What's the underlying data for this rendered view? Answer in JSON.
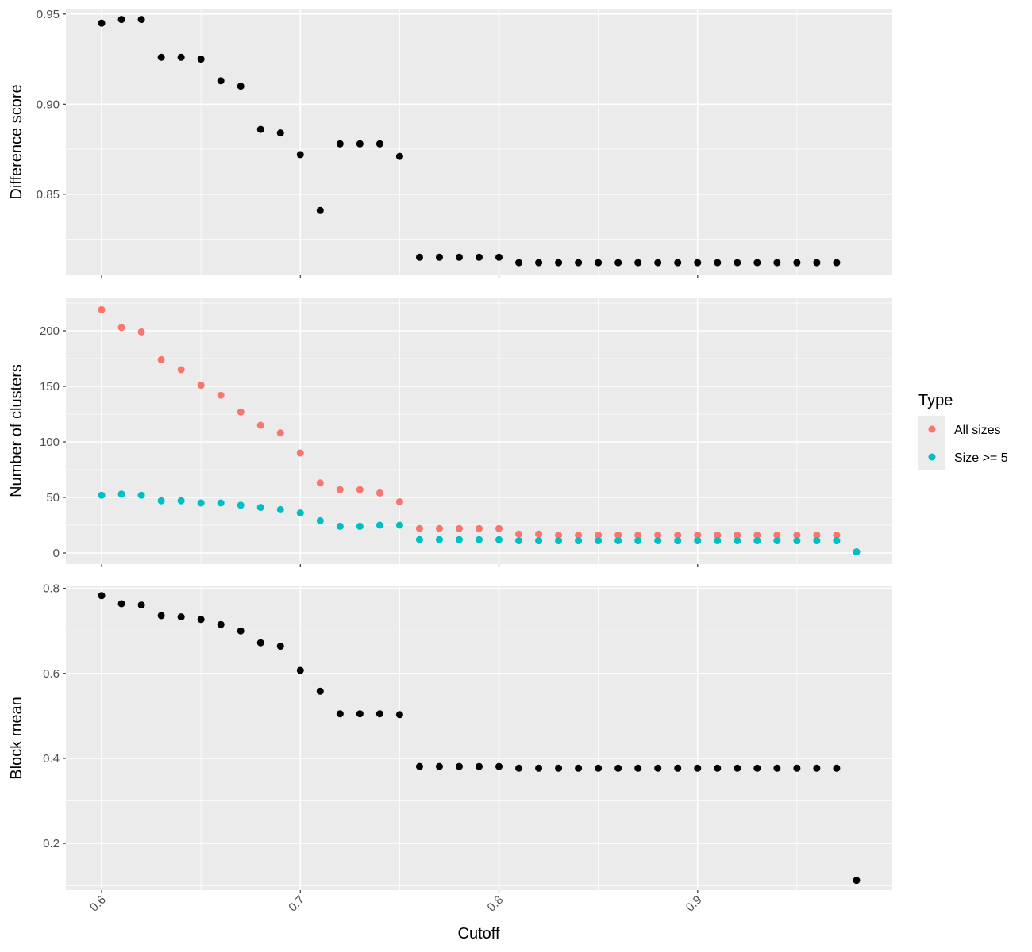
{
  "chart_data": {
    "type": "scatter",
    "x_axis": {
      "label": "Cutoff",
      "range": [
        0.582,
        0.998
      ],
      "ticks": [
        0.6,
        0.7,
        0.8,
        0.9
      ],
      "tick_labels": [
        "0.6",
        "0.7",
        "0.8",
        "0.9"
      ],
      "tick_label_rotation": "45deg"
    },
    "colors": {
      "panel_bg": "#EBEBEB",
      "grid": "#FFFFFF",
      "point_default": "#000000",
      "all_sizes": "#F8766D",
      "size_ge5": "#00BFC4"
    },
    "legend": {
      "title": "Type",
      "placement": "right",
      "entries": [
        {
          "label": "All sizes",
          "color": "#F8766D"
        },
        {
          "label": "Size >= 5",
          "color": "#00BFC4"
        }
      ]
    },
    "panels": [
      {
        "ylabel": "Difference score",
        "ylim": [
          0.805,
          0.953
        ],
        "yticks": [
          0.85,
          0.9,
          0.95
        ],
        "ytick_labels": [
          "0.85",
          "0.90",
          "0.95"
        ],
        "series": [
          {
            "color": "#000000",
            "x": [
              0.6,
              0.61,
              0.62,
              0.63,
              0.64,
              0.65,
              0.66,
              0.67,
              0.68,
              0.69,
              0.7,
              0.71,
              0.72,
              0.73,
              0.74,
              0.75,
              0.76,
              0.77,
              0.78,
              0.79,
              0.8,
              0.81,
              0.82,
              0.83,
              0.84,
              0.85,
              0.86,
              0.87,
              0.88,
              0.89,
              0.9,
              0.91,
              0.92,
              0.93,
              0.94,
              0.95,
              0.96,
              0.97
            ],
            "y": [
              0.945,
              0.947,
              0.947,
              0.926,
              0.926,
              0.925,
              0.913,
              0.91,
              0.886,
              0.884,
              0.872,
              0.841,
              0.878,
              0.878,
              0.878,
              0.871,
              0.815,
              0.815,
              0.815,
              0.815,
              0.815,
              0.812,
              0.812,
              0.812,
              0.812,
              0.812,
              0.812,
              0.812,
              0.812,
              0.812,
              0.812,
              0.812,
              0.812,
              0.812,
              0.812,
              0.812,
              0.812,
              0.812
            ]
          }
        ]
      },
      {
        "ylabel": "Number of clusters",
        "ylim": [
          -10,
          230
        ],
        "yticks": [
          0,
          50,
          100,
          150,
          200
        ],
        "ytick_labels": [
          "0",
          "50",
          "100",
          "150",
          "200"
        ],
        "series": [
          {
            "name": "All sizes",
            "color": "#F8766D",
            "x": [
              0.6,
              0.61,
              0.62,
              0.63,
              0.64,
              0.65,
              0.66,
              0.67,
              0.68,
              0.69,
              0.7,
              0.71,
              0.72,
              0.73,
              0.74,
              0.75,
              0.76,
              0.77,
              0.78,
              0.79,
              0.8,
              0.81,
              0.82,
              0.83,
              0.84,
              0.85,
              0.86,
              0.87,
              0.88,
              0.89,
              0.9,
              0.91,
              0.92,
              0.93,
              0.94,
              0.95,
              0.96,
              0.97,
              0.98
            ],
            "y": [
              219,
              203,
              199,
              174,
              165,
              151,
              142,
              127,
              115,
              108,
              90,
              63,
              57,
              57,
              54,
              46,
              22,
              22,
              22,
              22,
              22,
              17,
              17,
              16,
              16,
              16,
              16,
              16,
              16,
              16,
              16,
              16,
              16,
              16,
              16,
              16,
              16,
              16,
              1
            ]
          },
          {
            "name": "Size >= 5",
            "color": "#00BFC4",
            "x": [
              0.6,
              0.61,
              0.62,
              0.63,
              0.64,
              0.65,
              0.66,
              0.67,
              0.68,
              0.69,
              0.7,
              0.71,
              0.72,
              0.73,
              0.74,
              0.75,
              0.76,
              0.77,
              0.78,
              0.79,
              0.8,
              0.81,
              0.82,
              0.83,
              0.84,
              0.85,
              0.86,
              0.87,
              0.88,
              0.89,
              0.9,
              0.91,
              0.92,
              0.93,
              0.94,
              0.95,
              0.96,
              0.97,
              0.98
            ],
            "y": [
              52,
              53,
              52,
              47,
              47,
              45,
              45,
              43,
              41,
              39,
              36,
              29,
              24,
              24,
              25,
              25,
              12,
              12,
              12,
              12,
              12,
              11,
              11,
              11,
              11,
              11,
              11,
              11,
              11,
              11,
              11,
              11,
              11,
              11,
              11,
              11,
              11,
              11,
              1
            ]
          }
        ]
      },
      {
        "ylabel": "Block mean",
        "ylim": [
          0.09,
          0.805
        ],
        "yticks": [
          0.2,
          0.4,
          0.6,
          0.8
        ],
        "ytick_labels": [
          "0.2",
          "0.4",
          "0.6",
          "0.8"
        ],
        "series": [
          {
            "color": "#000000",
            "x": [
              0.6,
              0.61,
              0.62,
              0.63,
              0.64,
              0.65,
              0.66,
              0.67,
              0.68,
              0.69,
              0.7,
              0.71,
              0.72,
              0.73,
              0.74,
              0.75,
              0.76,
              0.77,
              0.78,
              0.79,
              0.8,
              0.81,
              0.82,
              0.83,
              0.84,
              0.85,
              0.86,
              0.87,
              0.88,
              0.89,
              0.9,
              0.91,
              0.92,
              0.93,
              0.94,
              0.95,
              0.96,
              0.97,
              0.98
            ],
            "y": [
              0.783,
              0.764,
              0.761,
              0.736,
              0.733,
              0.727,
              0.715,
              0.7,
              0.672,
              0.664,
              0.607,
              0.558,
              0.505,
              0.505,
              0.505,
              0.503,
              0.381,
              0.381,
              0.381,
              0.381,
              0.381,
              0.377,
              0.377,
              0.377,
              0.377,
              0.377,
              0.377,
              0.377,
              0.377,
              0.377,
              0.377,
              0.377,
              0.377,
              0.377,
              0.377,
              0.377,
              0.377,
              0.377,
              0.113
            ]
          }
        ]
      }
    ]
  }
}
